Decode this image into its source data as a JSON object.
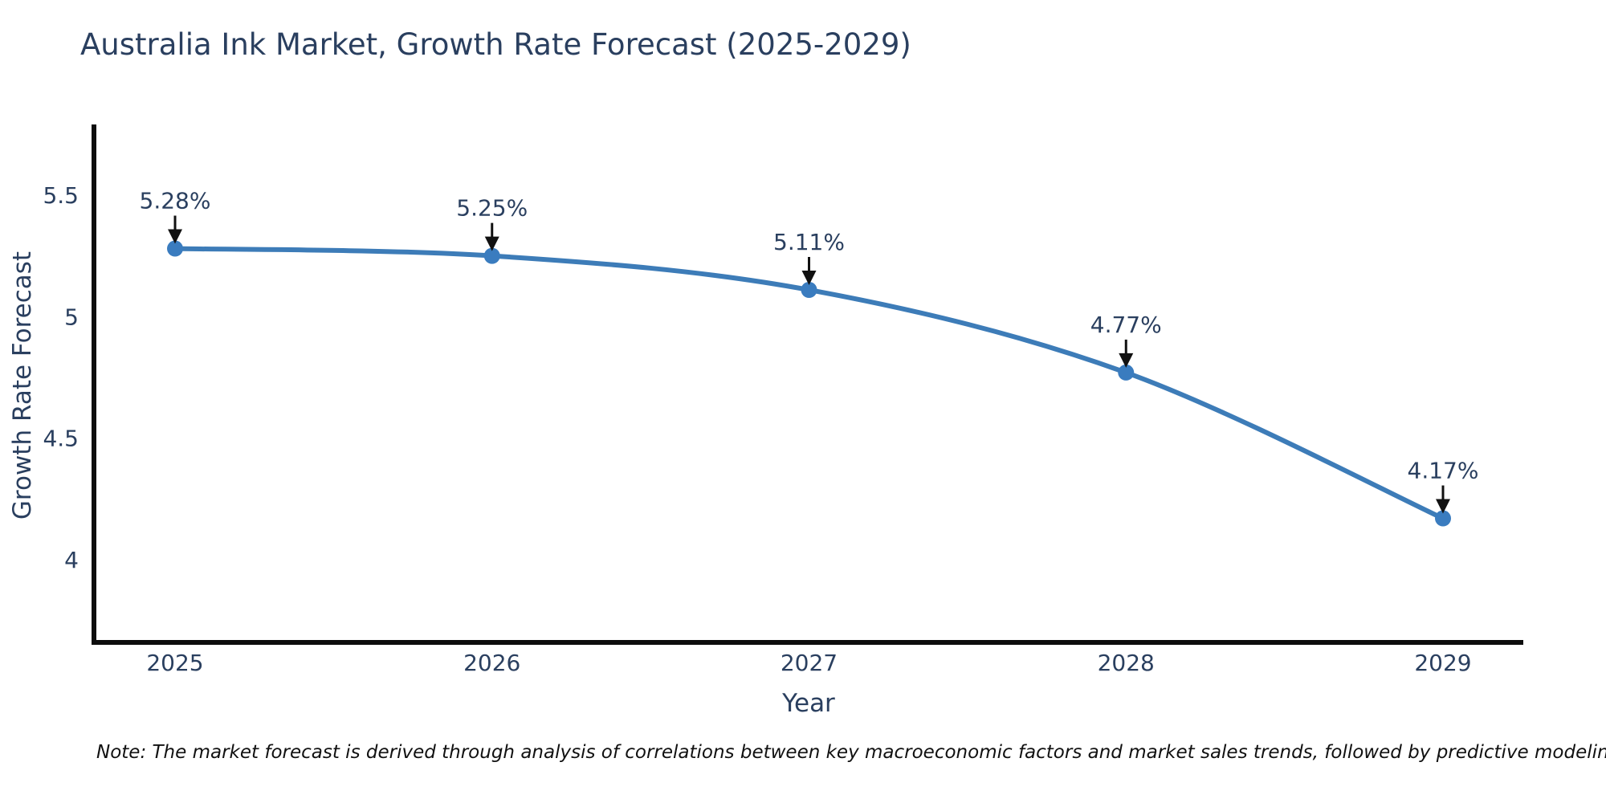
{
  "title": "Australia Ink Market, Growth Rate Forecast (2025-2029)",
  "note": "Note: The market forecast is derived through analysis of correlations between key macroeconomic factors and market sales trends, followed by predictive modeling to project future sales",
  "chart_data": {
    "type": "line",
    "title": "Australia Ink Market, Growth Rate Forecast (2025-2029)",
    "xlabel": "Year",
    "ylabel": "Growth Rate Forecast",
    "categories": [
      "2025",
      "2026",
      "2027",
      "2028",
      "2029"
    ],
    "values": [
      5.28,
      5.25,
      5.11,
      4.77,
      4.17
    ],
    "point_labels": [
      "5.28%",
      "5.25%",
      "5.11%",
      "4.77%",
      "4.17%"
    ],
    "yticks": [
      4,
      4.5,
      5,
      5.5
    ],
    "ylim": [
      3.65,
      5.8
    ],
    "grid": false,
    "legend_position": "none",
    "line_shape": "spline",
    "line_color": "#3d7cb8",
    "marker_color": "#3a7cbf",
    "axis_color": "#0d0d0d",
    "text_color": "#2a3f5f",
    "annotation_arrow_color": "#111111",
    "background_color": "#ffffff"
  }
}
